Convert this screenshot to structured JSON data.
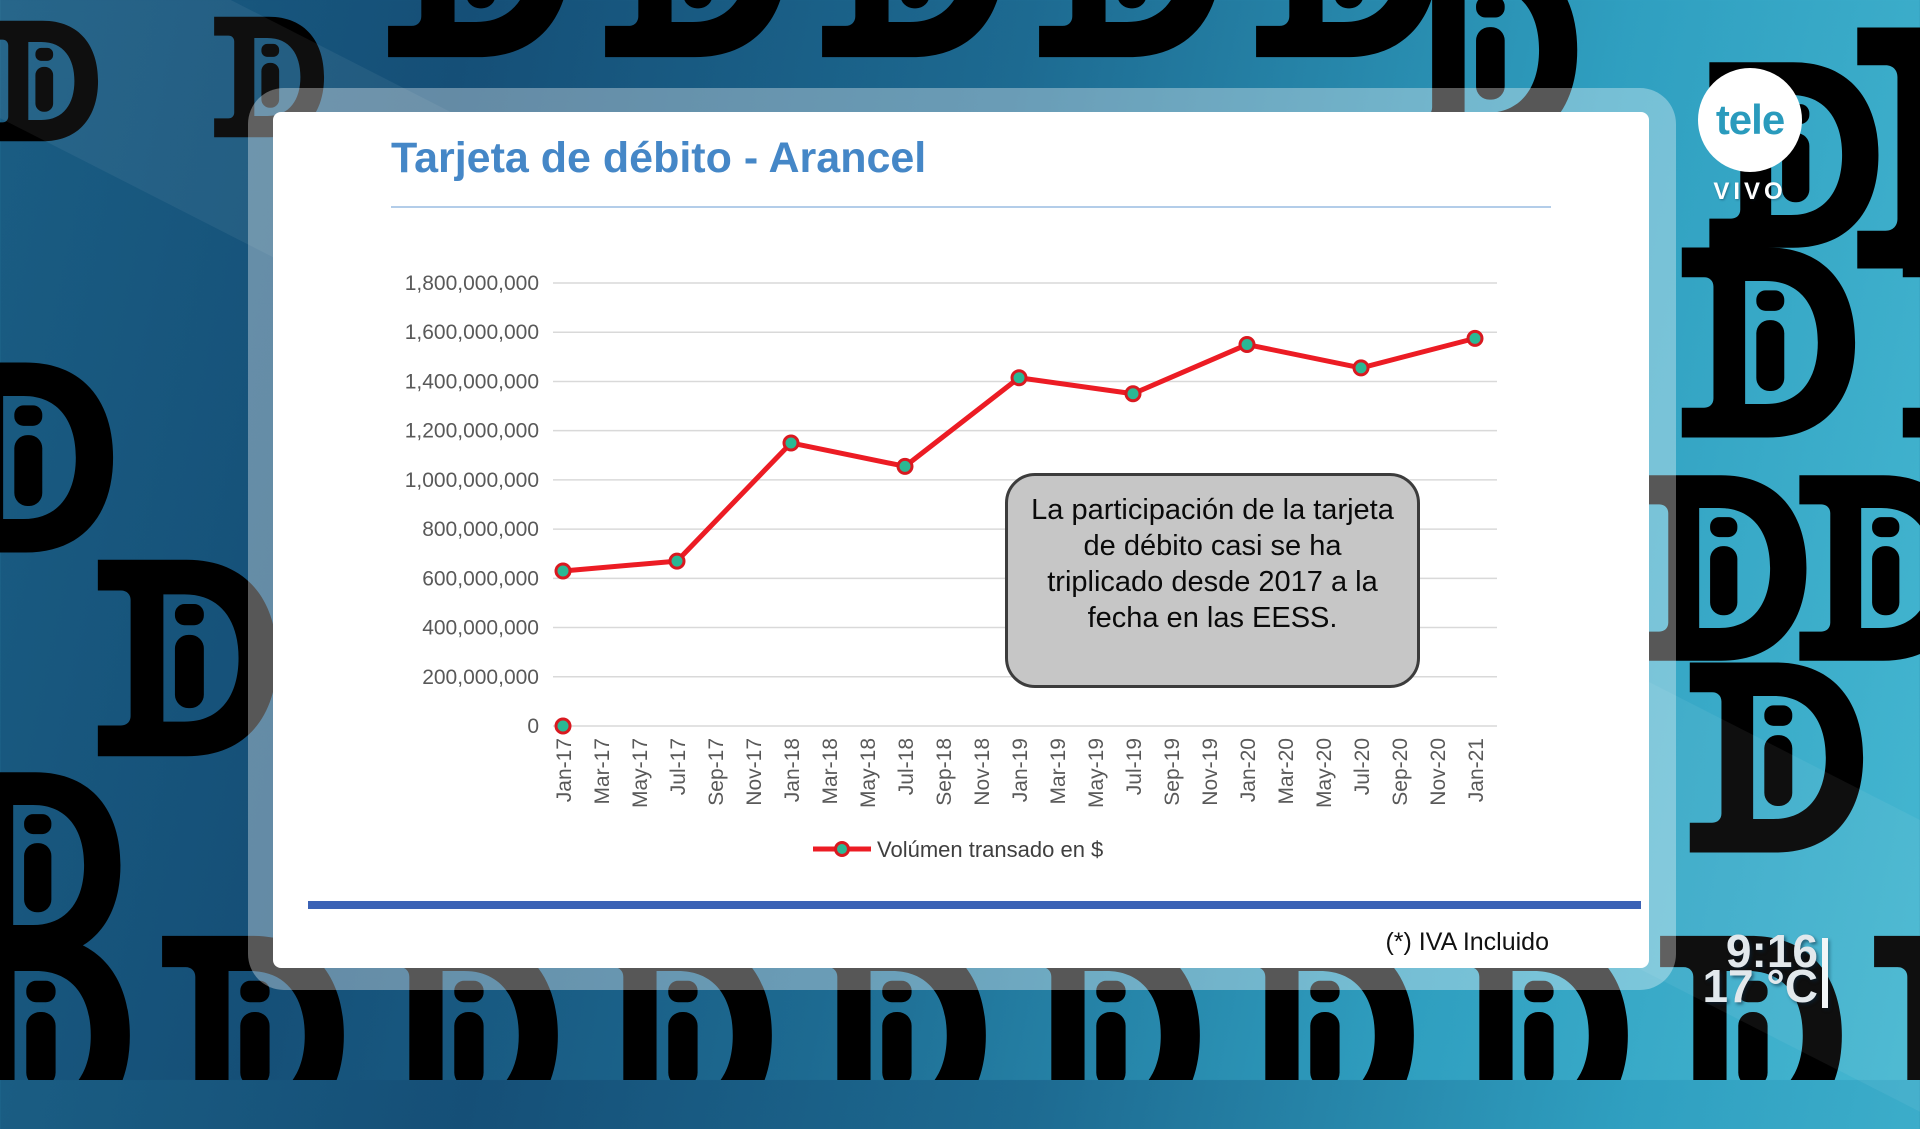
{
  "broadcast": {
    "channel_logo": {
      "text": "tele",
      "live_label": "VIVO"
    },
    "clock": {
      "time": "9:16",
      "temperature": "17 °C"
    }
  },
  "slide": {
    "title": "Tarjeta de débito - Arancel",
    "title_color": "#4587c7",
    "accent_bar_color": "#3b62b5",
    "annotation": "La participación de la tarjeta de débito casi se ha triplicado desde 2017 a la fecha en las EESS.",
    "footnote": "(*) IVA Incluido"
  },
  "chart_data": {
    "type": "line",
    "title": "Tarjeta de débito - Arancel",
    "xlabel": "",
    "ylabel": "",
    "ylim": [
      0,
      1800000000
    ],
    "y_tick_step": 200000000,
    "grid": true,
    "legend_position": "bottom",
    "x_ticks": [
      "Jan-17",
      "Mar-17",
      "May-17",
      "Jul-17",
      "Sep-17",
      "Nov-17",
      "Jan-18",
      "Mar-18",
      "May-18",
      "Jul-18",
      "Sep-18",
      "Nov-18",
      "Jan-19",
      "Mar-19",
      "May-19",
      "Jul-19",
      "Sep-19",
      "Nov-19",
      "Jan-20",
      "Mar-20",
      "May-20",
      "Jul-20",
      "Sep-20",
      "Nov-20",
      "Jan-21"
    ],
    "series": [
      {
        "name": "Volúmen transado en $",
        "color": "#ec1c24",
        "marker_fill": "#2ab894",
        "marker_stroke": "#d91920",
        "points": [
          {
            "x": "Jan-17",
            "y": 630000000
          },
          {
            "x": "Jul-17",
            "y": 670000000
          },
          {
            "x": "Jan-18",
            "y": 1150000000
          },
          {
            "x": "Jul-18",
            "y": 1055000000
          },
          {
            "x": "Jan-19",
            "y": 1415000000
          },
          {
            "x": "Jul-19",
            "y": 1350000000
          },
          {
            "x": "Jan-20",
            "y": 1550000000
          },
          {
            "x": "Jul-20",
            "y": 1455000000
          },
          {
            "x": "Jan-21",
            "y": 1575000000
          }
        ]
      }
    ],
    "extra_markers": [
      {
        "x": "Jan-17",
        "y": 0
      }
    ],
    "grid_color": "#d9d9d9",
    "axis_label_color": "#595959"
  }
}
